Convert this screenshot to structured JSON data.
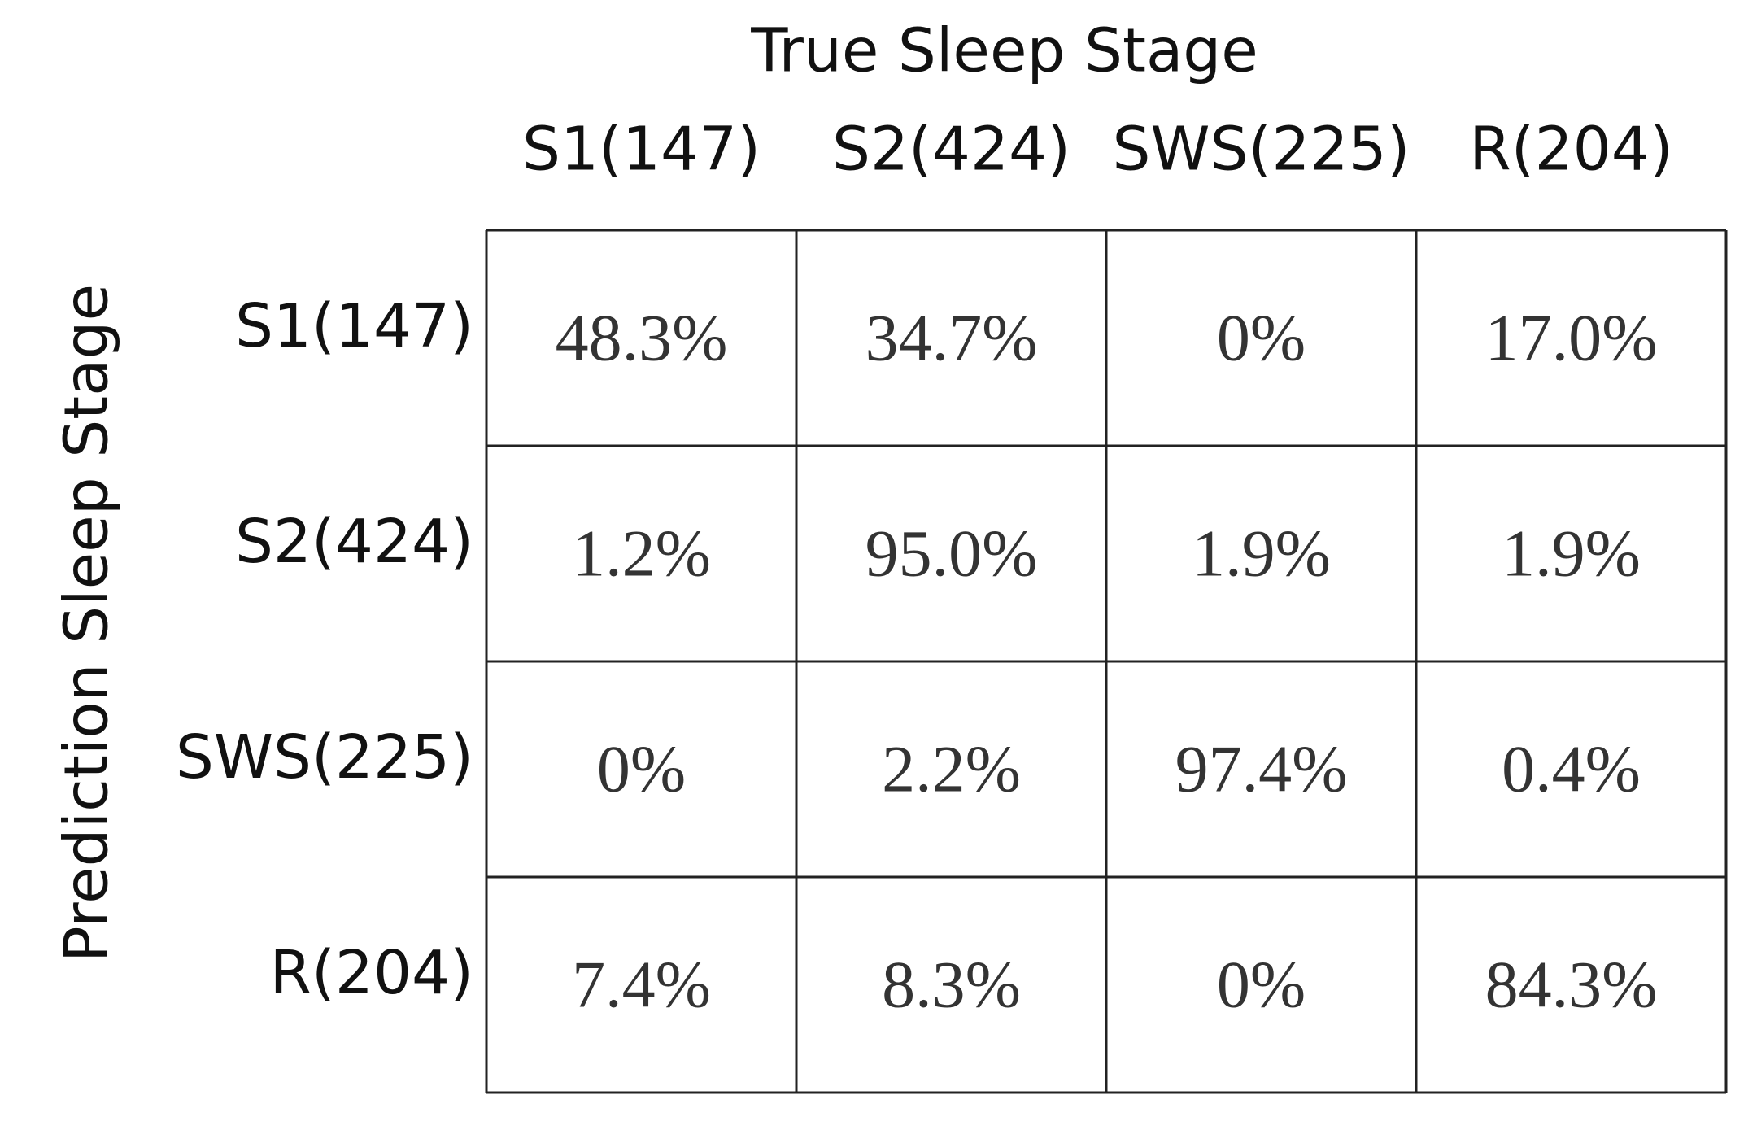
{
  "table": {
    "column_title": "True Sleep Stage",
    "row_title": "Prediction Sleep Stage",
    "columns": [
      "S1(147)",
      "S2(424)",
      "SWS(225)",
      "R(204)"
    ],
    "rows": [
      {
        "label": "S1(147)",
        "cells": [
          "48.3%",
          "34.7%",
          "0%",
          "17.0%"
        ]
      },
      {
        "label": "S2(424)",
        "cells": [
          "1.2%",
          "95.0%",
          "1.9%",
          "1.9%"
        ]
      },
      {
        "label": "SWS(225)",
        "cells": [
          "0%",
          "2.2%",
          "97.4%",
          "0.4%"
        ]
      },
      {
        "label": "R(204)",
        "cells": [
          "7.4%",
          "8.3%",
          "0%",
          "84.3%"
        ]
      }
    ]
  }
}
